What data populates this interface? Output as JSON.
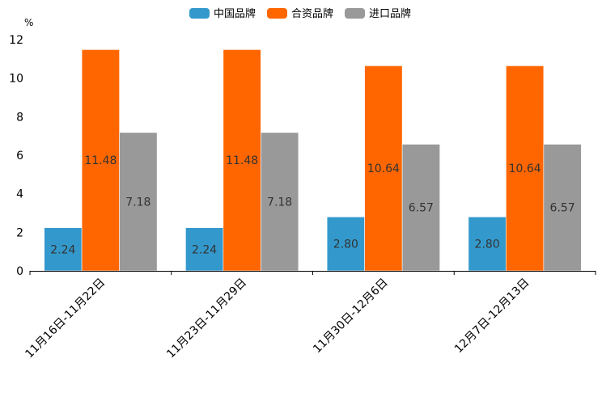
{
  "chart_data": {
    "type": "bar",
    "title": "",
    "xlabel": "",
    "ylabel": "%",
    "ylim": [
      0,
      12
    ],
    "yticks": [
      0,
      2,
      4,
      6,
      8,
      10,
      12
    ],
    "grid": false,
    "legend_position": "top-center",
    "categories": [
      "11月16日-11月22日",
      "11月23日-11月29日",
      "11月30日-12月6日",
      "12月7日-12月13日"
    ],
    "series": [
      {
        "name": "中国品牌",
        "color": "#3399cc",
        "values": [
          2.24,
          2.24,
          2.8,
          2.8
        ],
        "labels": [
          "2.24",
          "2.24",
          "2.80",
          "2.80"
        ]
      },
      {
        "name": "合资品牌",
        "color": "#ff6600",
        "values": [
          11.48,
          11.48,
          10.64,
          10.64
        ],
        "labels": [
          "11.48",
          "11.48",
          "10.64",
          "10.64"
        ]
      },
      {
        "name": "进口品牌",
        "color": "#999999",
        "values": [
          7.18,
          7.18,
          6.57,
          6.57
        ],
        "labels": [
          "7.18",
          "7.18",
          "6.57",
          "6.57"
        ]
      }
    ]
  }
}
